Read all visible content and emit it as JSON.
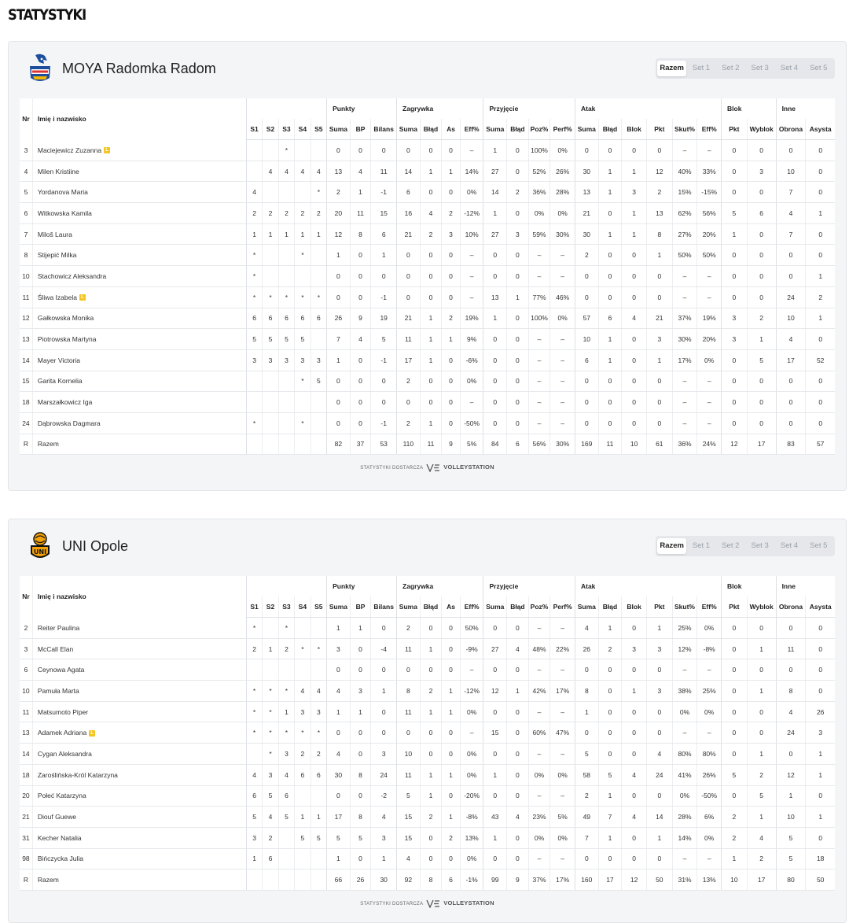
{
  "page_title": "STATYSTYKI",
  "tabs": [
    "Razem",
    "Set 1",
    "Set 2",
    "Set 3",
    "Set 4",
    "Set 5"
  ],
  "footer": {
    "provided_by": "STATYSTYKI DOSTARCZA",
    "brand": "VOLLEYSTATION"
  },
  "headers": {
    "nr": "Nr",
    "name": "Imię i nazwisko",
    "groups": [
      "Punkty",
      "Zagrywka",
      "Przyjęcie",
      "Atak",
      "Blok",
      "Inne"
    ],
    "cols": [
      "S1",
      "S2",
      "S3",
      "S4",
      "S5",
      "Suma",
      "BP",
      "Bilans",
      "Suma",
      "Błąd",
      "As",
      "Eff%",
      "Suma",
      "Błąd",
      "Poz%",
      "Perf%",
      "Suma",
      "Błąd",
      "Blok",
      "Pkt",
      "Skut%",
      "Eff%",
      "Pkt",
      "Wyblok",
      "Obrona",
      "Asysta"
    ]
  },
  "libero_badge": "L",
  "teams": [
    {
      "name": "MOYA Radomka Radom",
      "logo_icon": "radomka-eagle-logo",
      "players": [
        {
          "nr": "3",
          "name": "Maciejewicz Zuzanna",
          "libero": true,
          "v": [
            "",
            "",
            "*",
            "",
            "",
            "0",
            "0",
            "0",
            "0",
            "0",
            "0",
            "–",
            "1",
            "0",
            "100%",
            "0%",
            "0",
            "0",
            "0",
            "0",
            "–",
            "–",
            "0",
            "0",
            "0",
            "0"
          ]
        },
        {
          "nr": "4",
          "name": "Milen Kristiine",
          "libero": false,
          "v": [
            "",
            "4",
            "4",
            "4",
            "4",
            "13",
            "4",
            "11",
            "14",
            "1",
            "1",
            "14%",
            "27",
            "0",
            "52%",
            "26%",
            "30",
            "1",
            "1",
            "12",
            "40%",
            "33%",
            "0",
            "3",
            "10",
            "0"
          ]
        },
        {
          "nr": "5",
          "name": "Yordanova Maria",
          "libero": false,
          "v": [
            "4",
            "",
            "",
            "",
            "*",
            "2",
            "1",
            "-1",
            "6",
            "0",
            "0",
            "0%",
            "14",
            "2",
            "36%",
            "28%",
            "13",
            "1",
            "3",
            "2",
            "15%",
            "-15%",
            "0",
            "0",
            "7",
            "0"
          ]
        },
        {
          "nr": "6",
          "name": "Witkowska Kamila",
          "libero": false,
          "v": [
            "2",
            "2",
            "2",
            "2",
            "2",
            "20",
            "11",
            "15",
            "16",
            "4",
            "2",
            "-12%",
            "1",
            "0",
            "0%",
            "0%",
            "21",
            "0",
            "1",
            "13",
            "62%",
            "56%",
            "5",
            "6",
            "4",
            "1"
          ]
        },
        {
          "nr": "7",
          "name": "Miloš Laura",
          "libero": false,
          "v": [
            "1",
            "1",
            "1",
            "1",
            "1",
            "12",
            "8",
            "6",
            "21",
            "2",
            "3",
            "10%",
            "27",
            "3",
            "59%",
            "30%",
            "30",
            "1",
            "1",
            "8",
            "27%",
            "20%",
            "1",
            "0",
            "7",
            "0"
          ]
        },
        {
          "nr": "8",
          "name": "Stijepić Milka",
          "libero": false,
          "v": [
            "*",
            "",
            "",
            "*",
            "",
            "1",
            "0",
            "1",
            "0",
            "0",
            "0",
            "–",
            "0",
            "0",
            "–",
            "–",
            "2",
            "0",
            "0",
            "1",
            "50%",
            "50%",
            "0",
            "0",
            "0",
            "0"
          ]
        },
        {
          "nr": "10",
          "name": "Stachowicz Aleksandra",
          "libero": false,
          "v": [
            "*",
            "",
            "",
            "",
            "",
            "0",
            "0",
            "0",
            "0",
            "0",
            "0",
            "–",
            "0",
            "0",
            "–",
            "–",
            "0",
            "0",
            "0",
            "0",
            "–",
            "–",
            "0",
            "0",
            "0",
            "1"
          ]
        },
        {
          "nr": "11",
          "name": "Śliwa Izabela",
          "libero": true,
          "v": [
            "*",
            "*",
            "*",
            "*",
            "*",
            "0",
            "0",
            "-1",
            "0",
            "0",
            "0",
            "–",
            "13",
            "1",
            "77%",
            "46%",
            "0",
            "0",
            "0",
            "0",
            "–",
            "–",
            "0",
            "0",
            "24",
            "2"
          ]
        },
        {
          "nr": "12",
          "name": "Gałkowska Monika",
          "libero": false,
          "v": [
            "6",
            "6",
            "6",
            "6",
            "6",
            "26",
            "9",
            "19",
            "21",
            "1",
            "2",
            "19%",
            "1",
            "0",
            "100%",
            "0%",
            "57",
            "6",
            "4",
            "21",
            "37%",
            "19%",
            "3",
            "2",
            "10",
            "1"
          ]
        },
        {
          "nr": "13",
          "name": "Piotrowska Martyna",
          "libero": false,
          "v": [
            "5",
            "5",
            "5",
            "5",
            "",
            "7",
            "4",
            "5",
            "11",
            "1",
            "1",
            "9%",
            "0",
            "0",
            "–",
            "–",
            "10",
            "1",
            "0",
            "3",
            "30%",
            "20%",
            "3",
            "1",
            "4",
            "0"
          ]
        },
        {
          "nr": "14",
          "name": "Mayer Victoria",
          "libero": false,
          "v": [
            "3",
            "3",
            "3",
            "3",
            "3",
            "1",
            "0",
            "-1",
            "17",
            "1",
            "0",
            "-6%",
            "0",
            "0",
            "–",
            "–",
            "6",
            "1",
            "0",
            "1",
            "17%",
            "0%",
            "0",
            "5",
            "17",
            "52"
          ]
        },
        {
          "nr": "15",
          "name": "Garita Kornelia",
          "libero": false,
          "v": [
            "",
            "",
            "",
            "*",
            "5",
            "0",
            "0",
            "0",
            "2",
            "0",
            "0",
            "0%",
            "0",
            "0",
            "–",
            "–",
            "0",
            "0",
            "0",
            "0",
            "–",
            "–",
            "0",
            "0",
            "0",
            "0"
          ]
        },
        {
          "nr": "18",
          "name": "Marszałkowicz Iga",
          "libero": false,
          "v": [
            "",
            "",
            "",
            "",
            "",
            "0",
            "0",
            "0",
            "0",
            "0",
            "0",
            "–",
            "0",
            "0",
            "–",
            "–",
            "0",
            "0",
            "0",
            "0",
            "–",
            "–",
            "0",
            "0",
            "0",
            "0"
          ]
        },
        {
          "nr": "24",
          "name": "Dąbrowska Dagmara",
          "libero": false,
          "v": [
            "*",
            "",
            "",
            "*",
            "",
            "0",
            "0",
            "-1",
            "2",
            "1",
            "0",
            "-50%",
            "0",
            "0",
            "–",
            "–",
            "0",
            "0",
            "0",
            "0",
            "–",
            "–",
            "0",
            "0",
            "0",
            "0"
          ]
        }
      ],
      "total": {
        "nr": "R",
        "name": "Razem",
        "v": [
          "",
          "",
          "",
          "",
          "",
          "82",
          "37",
          "53",
          "110",
          "11",
          "9",
          "5%",
          "84",
          "6",
          "56%",
          "30%",
          "169",
          "11",
          "10",
          "61",
          "36%",
          "24%",
          "12",
          "17",
          "83",
          "57"
        ]
      }
    },
    {
      "name": "UNI Opole",
      "logo_icon": "uni-opole-logo",
      "players": [
        {
          "nr": "2",
          "name": "Reiter Paulina",
          "libero": false,
          "v": [
            "*",
            "",
            "*",
            "",
            "",
            "1",
            "1",
            "0",
            "2",
            "0",
            "0",
            "50%",
            "0",
            "0",
            "–",
            "–",
            "4",
            "1",
            "0",
            "1",
            "25%",
            "0%",
            "0",
            "0",
            "0",
            "0"
          ]
        },
        {
          "nr": "3",
          "name": "McCall Elan",
          "libero": false,
          "v": [
            "2",
            "1",
            "2",
            "*",
            "*",
            "3",
            "0",
            "-4",
            "11",
            "1",
            "0",
            "-9%",
            "27",
            "4",
            "48%",
            "22%",
            "26",
            "2",
            "3",
            "3",
            "12%",
            "-8%",
            "0",
            "1",
            "11",
            "0"
          ]
        },
        {
          "nr": "6",
          "name": "Ceynowa Agata",
          "libero": false,
          "v": [
            "",
            "",
            "",
            "",
            "",
            "0",
            "0",
            "0",
            "0",
            "0",
            "0",
            "–",
            "0",
            "0",
            "–",
            "–",
            "0",
            "0",
            "0",
            "0",
            "–",
            "–",
            "0",
            "0",
            "0",
            "0"
          ]
        },
        {
          "nr": "10",
          "name": "Pamuła Marta",
          "libero": false,
          "v": [
            "*",
            "*",
            "*",
            "4",
            "4",
            "4",
            "3",
            "1",
            "8",
            "2",
            "1",
            "-12%",
            "12",
            "1",
            "42%",
            "17%",
            "8",
            "0",
            "1",
            "3",
            "38%",
            "25%",
            "0",
            "1",
            "8",
            "0"
          ]
        },
        {
          "nr": "11",
          "name": "Matsumoto Piper",
          "libero": false,
          "v": [
            "*",
            "*",
            "1",
            "3",
            "3",
            "1",
            "1",
            "0",
            "11",
            "1",
            "1",
            "0%",
            "0",
            "0",
            "–",
            "–",
            "1",
            "0",
            "0",
            "0",
            "0%",
            "0%",
            "0",
            "0",
            "4",
            "26"
          ]
        },
        {
          "nr": "13",
          "name": "Adamek Adriana",
          "libero": true,
          "v": [
            "*",
            "*",
            "*",
            "*",
            "*",
            "0",
            "0",
            "0",
            "0",
            "0",
            "0",
            "–",
            "15",
            "0",
            "60%",
            "47%",
            "0",
            "0",
            "0",
            "0",
            "–",
            "–",
            "0",
            "0",
            "24",
            "3"
          ]
        },
        {
          "nr": "14",
          "name": "Cygan Aleksandra",
          "libero": false,
          "v": [
            "",
            "*",
            "3",
            "2",
            "2",
            "4",
            "0",
            "3",
            "10",
            "0",
            "0",
            "0%",
            "0",
            "0",
            "–",
            "–",
            "5",
            "0",
            "0",
            "4",
            "80%",
            "80%",
            "0",
            "1",
            "0",
            "1"
          ]
        },
        {
          "nr": "18",
          "name": "Zaroślińska-Król Katarzyna",
          "libero": false,
          "v": [
            "4",
            "3",
            "4",
            "6",
            "6",
            "30",
            "8",
            "24",
            "11",
            "1",
            "1",
            "0%",
            "1",
            "0",
            "0%",
            "0%",
            "58",
            "5",
            "4",
            "24",
            "41%",
            "26%",
            "5",
            "2",
            "12",
            "1"
          ]
        },
        {
          "nr": "20",
          "name": "Połeć Katarzyna",
          "libero": false,
          "v": [
            "6",
            "5",
            "6",
            "",
            "",
            "0",
            "0",
            "-2",
            "5",
            "1",
            "0",
            "-20%",
            "0",
            "0",
            "–",
            "–",
            "2",
            "1",
            "0",
            "0",
            "0%",
            "-50%",
            "0",
            "5",
            "1",
            "0"
          ]
        },
        {
          "nr": "21",
          "name": "Diouf Guewe",
          "libero": false,
          "v": [
            "5",
            "4",
            "5",
            "1",
            "1",
            "17",
            "8",
            "4",
            "15",
            "2",
            "1",
            "-8%",
            "43",
            "4",
            "23%",
            "5%",
            "49",
            "7",
            "4",
            "14",
            "28%",
            "6%",
            "2",
            "1",
            "10",
            "1"
          ]
        },
        {
          "nr": "31",
          "name": "Kecher Natalia",
          "libero": false,
          "v": [
            "3",
            "2",
            "",
            "5",
            "5",
            "5",
            "5",
            "3",
            "15",
            "0",
            "2",
            "13%",
            "1",
            "0",
            "0%",
            "0%",
            "7",
            "1",
            "0",
            "1",
            "14%",
            "0%",
            "2",
            "4",
            "5",
            "0"
          ]
        },
        {
          "nr": "98",
          "name": "Bińczycka Julia",
          "libero": false,
          "v": [
            "1",
            "6",
            "",
            "",
            "",
            "1",
            "0",
            "1",
            "4",
            "0",
            "0",
            "0%",
            "0",
            "0",
            "–",
            "–",
            "0",
            "0",
            "0",
            "0",
            "–",
            "–",
            "1",
            "2",
            "5",
            "18"
          ]
        }
      ],
      "total": {
        "nr": "R",
        "name": "Razem",
        "v": [
          "",
          "",
          "",
          "",
          "",
          "66",
          "26",
          "30",
          "92",
          "8",
          "6",
          "-1%",
          "99",
          "9",
          "37%",
          "17%",
          "160",
          "17",
          "12",
          "50",
          "31%",
          "13%",
          "10",
          "17",
          "80",
          "50"
        ]
      }
    }
  ]
}
